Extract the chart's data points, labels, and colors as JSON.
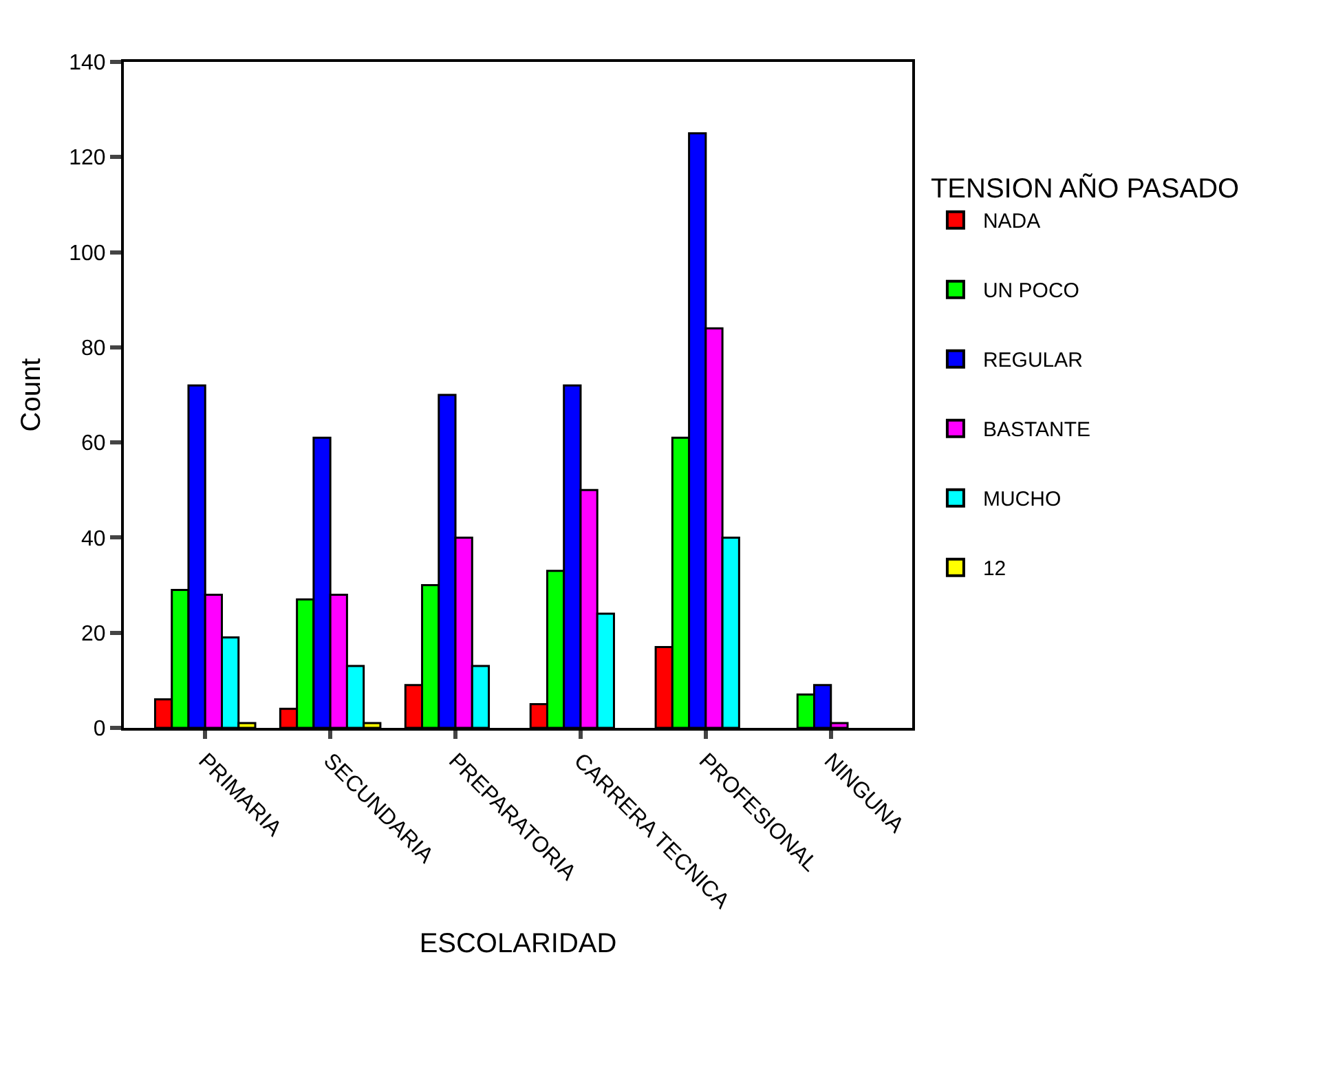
{
  "chart_data": {
    "type": "bar",
    "xlabel": "ESCOLARIDAD",
    "ylabel": "Count",
    "legend_title": "TENSION AÑO PASADO",
    "categories": [
      "PRIMARIA",
      "SECUNDARIA",
      "PREPARATORIA",
      "CARRERA TECNICA",
      "PROFESIONAL",
      "NINGUNA"
    ],
    "series": [
      {
        "name": "NADA",
        "color": "#ff0000",
        "values": [
          6,
          4,
          9,
          5,
          17,
          null
        ]
      },
      {
        "name": "UN POCO",
        "color": "#00ff00",
        "values": [
          29,
          27,
          30,
          33,
          61,
          7
        ]
      },
      {
        "name": "REGULAR",
        "color": "#0000ff",
        "values": [
          72,
          61,
          70,
          72,
          125,
          9
        ]
      },
      {
        "name": "BASTANTE",
        "color": "#ff00ff",
        "values": [
          28,
          28,
          40,
          50,
          84,
          1
        ]
      },
      {
        "name": "MUCHO",
        "color": "#00ffff",
        "values": [
          19,
          13,
          13,
          24,
          40,
          null
        ]
      },
      {
        "name": "12",
        "color": "#ffff00",
        "values": [
          1,
          1,
          null,
          null,
          null,
          null
        ]
      }
    ],
    "ylim": [
      0,
      140
    ],
    "yticks": [
      0,
      20,
      40,
      60,
      80,
      100,
      120,
      140
    ],
    "legend": "right"
  }
}
